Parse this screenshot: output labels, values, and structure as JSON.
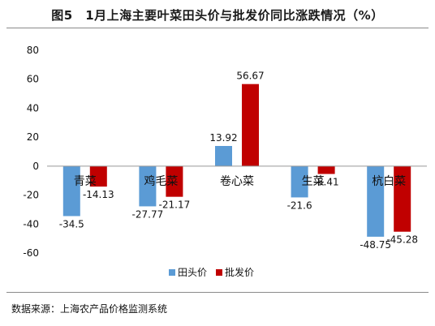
{
  "title": "图5　1月上海主要叶菜田头价与批发价同比涨跌情况（%）",
  "source": "数据来源：上海农产品价格监测系统",
  "colors": {
    "field_price": "#5b9bd5",
    "wholesale_price": "#c00000"
  },
  "chart_data": {
    "type": "bar",
    "categories": [
      "青菜",
      "鸡毛菜",
      "卷心菜",
      "生菜",
      "杭白菜"
    ],
    "series": [
      {
        "name": "田头价",
        "values": [
          -34.5,
          -27.77,
          13.92,
          -21.6,
          -48.75
        ]
      },
      {
        "name": "批发价",
        "values": [
          -14.13,
          -21.17,
          56.67,
          -5.41,
          -45.28
        ]
      }
    ],
    "data_labels": [
      [
        "-34.5",
        "-27.77",
        "13.92",
        "-21.6",
        "-48.75"
      ],
      [
        "-14.13",
        "-21.17",
        "56.67",
        "-5.41",
        "-45.28"
      ]
    ],
    "ylim": [
      -60,
      80
    ],
    "yticks": [
      -60,
      -40,
      -20,
      0,
      20,
      40,
      60,
      80
    ],
    "legend_position": "bottom",
    "grid": false
  }
}
